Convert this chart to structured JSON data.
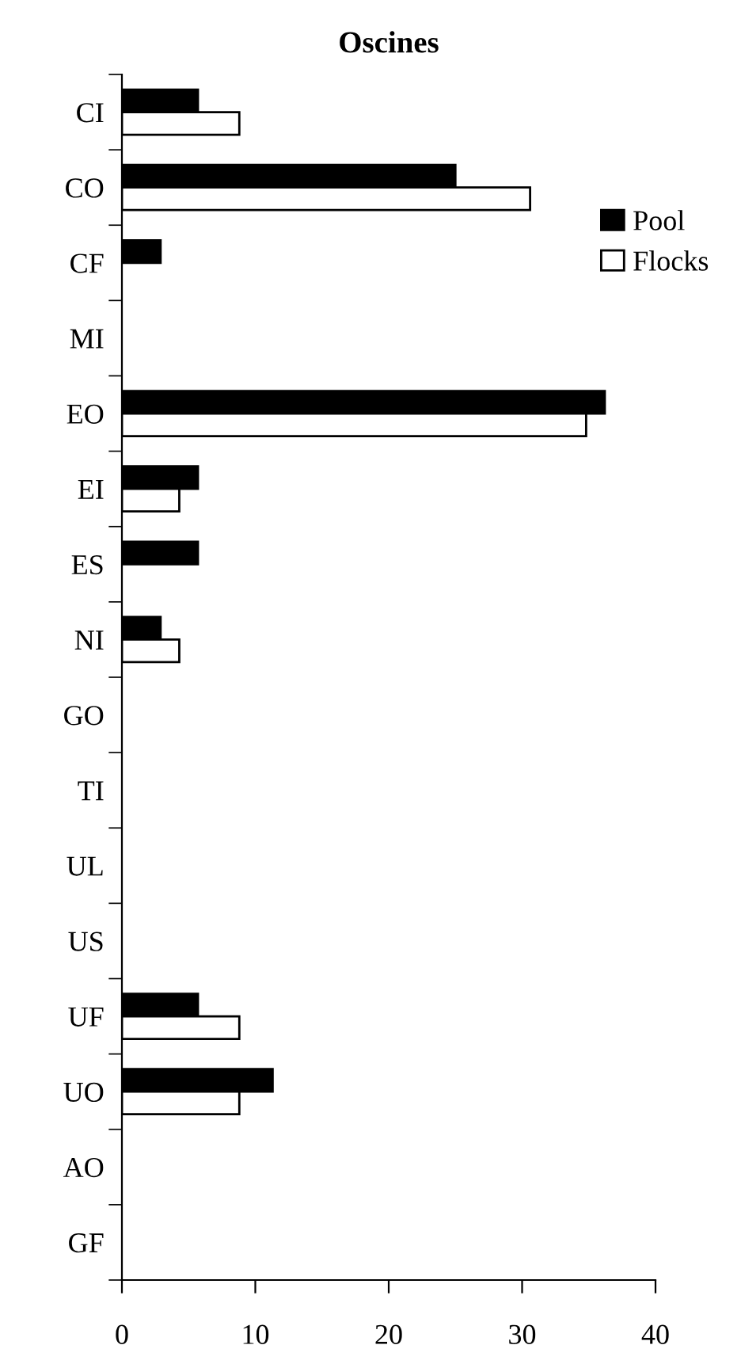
{
  "chart_data": {
    "type": "bar",
    "orientation": "horizontal",
    "title": "Oscines",
    "categories": [
      "CI",
      "CO",
      "CF",
      "MI",
      "EO",
      "EI",
      "ES",
      "NI",
      "GO",
      "TI",
      "UL",
      "US",
      "UF",
      "UO",
      "AO",
      "GF"
    ],
    "series": [
      {
        "name": "Pool",
        "color": "#000000",
        "values": [
          5.7,
          25.0,
          2.9,
          0,
          36.2,
          5.7,
          5.7,
          2.9,
          0,
          0,
          0,
          0,
          5.7,
          11.3,
          0,
          0
        ]
      },
      {
        "name": "Flocks",
        "color": "#ffffff",
        "values": [
          8.8,
          30.6,
          0,
          0,
          34.8,
          4.3,
          0,
          4.3,
          0,
          0,
          0,
          0,
          8.8,
          8.8,
          0,
          0
        ]
      }
    ],
    "xlim": [
      0,
      40
    ],
    "xticks": [
      0,
      10,
      20,
      30,
      40
    ],
    "grid": false,
    "legend": "right"
  }
}
